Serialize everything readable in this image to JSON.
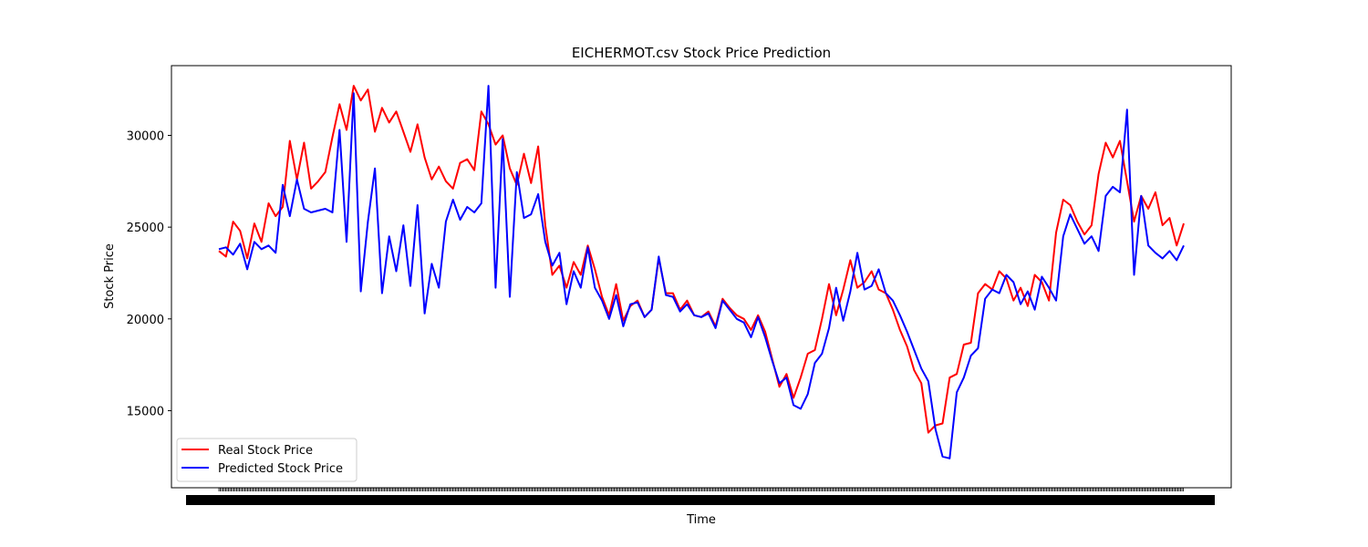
{
  "chart_data": {
    "type": "line",
    "title": "EICHERMOT.csv Stock Price Prediction",
    "xlabel": "Time",
    "ylabel": "Stock Price",
    "ylim": [
      10800,
      33800
    ],
    "yticks": [
      15000,
      20000,
      25000,
      30000
    ],
    "grid": false,
    "legend_position": "lower-left",
    "x_tick_labels": "dense overlapping date labels (unreadable)",
    "series": [
      {
        "name": "Real Stock Price",
        "color": "#ff0000",
        "values": [
          23700,
          23400,
          25300,
          24800,
          23300,
          25200,
          24200,
          26300,
          25600,
          26100,
          29700,
          27600,
          29600,
          27100,
          27500,
          28000,
          29900,
          31700,
          30300,
          32700,
          31900,
          32500,
          30200,
          31500,
          30700,
          31300,
          30200,
          29100,
          30600,
          28800,
          27600,
          28300,
          27500,
          27100,
          28500,
          28700,
          28100,
          31300,
          30600,
          29500,
          30000,
          28200,
          27300,
          29000,
          27400,
          29400,
          25100,
          22400,
          22900,
          21700,
          23100,
          22400,
          24000,
          22700,
          21200,
          20200,
          21900,
          19900,
          20700,
          21000,
          20100,
          20500,
          23300,
          21400,
          21400,
          20500,
          21000,
          20200,
          20100,
          20400,
          19600,
          21100,
          20600,
          20200,
          20000,
          19400,
          20200,
          19300,
          17800,
          16300,
          17000,
          15700,
          16800,
          18100,
          18300,
          20000,
          21900,
          20200,
          21600,
          23200,
          21700,
          22000,
          22600,
          21600,
          21400,
          20500,
          19400,
          18500,
          17200,
          16500,
          13800,
          14200,
          14300,
          16800,
          17000,
          18600,
          18700,
          21400,
          21900,
          21600,
          22600,
          22200,
          21000,
          21700,
          20700,
          22400,
          22000,
          21000,
          24700,
          26500,
          26200,
          25300,
          24600,
          25100,
          27900,
          29600,
          28800,
          29700,
          27500,
          25300,
          26700,
          26000,
          26900,
          25100,
          25500,
          24000,
          25200
        ]
      },
      {
        "name": "Predicted Stock Price",
        "color": "#0000ff",
        "values": [
          23800,
          23900,
          23500,
          24100,
          22700,
          24200,
          23800,
          24000,
          23600,
          27300,
          25600,
          27600,
          26000,
          25800,
          25900,
          26000,
          25800,
          30300,
          24200,
          32300,
          21500,
          25300,
          28200,
          21400,
          24500,
          22600,
          25100,
          21800,
          26200,
          20300,
          23000,
          21700,
          25300,
          26500,
          25400,
          26100,
          25800,
          26300,
          32700,
          21700,
          29800,
          21200,
          28000,
          25500,
          25700,
          26800,
          24200,
          22900,
          23600,
          20800,
          22600,
          21700,
          23900,
          21700,
          21000,
          20000,
          21300,
          19600,
          20800,
          20900,
          20100,
          20500,
          23400,
          21300,
          21200,
          20400,
          20800,
          20200,
          20100,
          20300,
          19500,
          21000,
          20500,
          20000,
          19800,
          19000,
          20100,
          19000,
          17700,
          16500,
          16800,
          15300,
          15100,
          15900,
          17600,
          18100,
          19500,
          21700,
          19900,
          21500,
          23600,
          21600,
          21800,
          22700,
          21400,
          21000,
          20200,
          19300,
          18300,
          17300,
          16600,
          14000,
          12500,
          12400,
          16000,
          16800,
          18000,
          18400,
          21100,
          21600,
          21400,
          22400,
          22000,
          20800,
          21500,
          20500,
          22300,
          21700,
          21000,
          24500,
          25700,
          24900,
          24100,
          24500,
          23700,
          26700,
          27200,
          26900,
          31400,
          22400,
          26700,
          24000,
          23600,
          23300,
          23700,
          23200,
          24000
        ]
      }
    ]
  }
}
